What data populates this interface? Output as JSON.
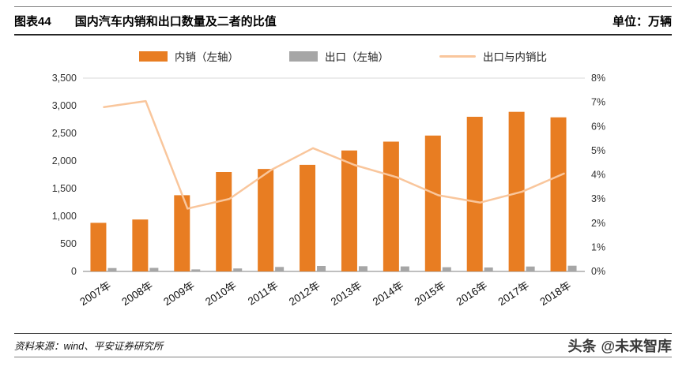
{
  "header": {
    "figure_number": "图表44",
    "title": "国内汽车内销和出口数量及二者的比值",
    "unit": "单位：万辆"
  },
  "footer": {
    "source": "资料来源：wind、平安证券研究所",
    "brand_name": "头条",
    "brand_handle": "@未来智库"
  },
  "colors": {
    "domestic_bar": "#E87D22",
    "export_bar": "#A6A6A6",
    "ratio_line": "#F9C69C",
    "axis_text": "#333333",
    "axis_line": "#7f7f7f",
    "plot_top_border": "#d9d9d9",
    "rule_dark": "#262626",
    "rule_light": "#808080"
  },
  "chart_data": {
    "type": "bar+line",
    "title": "国内汽车内销和出口数量及二者的比值",
    "unit": "万辆",
    "grid": false,
    "legend_position": "top",
    "categories": [
      "2007年",
      "2008年",
      "2009年",
      "2010年",
      "2011年",
      "2012年",
      "2013年",
      "2014年",
      "2015年",
      "2016年",
      "2017年",
      "2018年"
    ],
    "series": [
      {
        "name": "内销（左轴）",
        "type": "bar",
        "axis": "left",
        "color": "#E87D22",
        "values": [
          880,
          940,
          1380,
          1800,
          1855,
          1930,
          2190,
          2350,
          2460,
          2800,
          2890,
          2790
        ]
      },
      {
        "name": "出口（左轴）",
        "type": "bar",
        "axis": "left",
        "color": "#A6A6A6",
        "values": [
          61,
          64,
          37,
          54,
          81,
          100,
          95,
          91,
          76,
          71,
          89,
          104
        ]
      },
      {
        "name": "出口与内销比",
        "type": "line",
        "axis": "right",
        "color": "#F9C69C",
        "values": [
          6.8,
          7.05,
          2.6,
          3.0,
          4.2,
          5.1,
          4.4,
          3.9,
          3.15,
          2.85,
          3.3,
          4.05
        ]
      }
    ],
    "left_axis": {
      "max": 3500,
      "min": 0,
      "ticks": [
        {
          "value": 3500,
          "label": "3,500"
        },
        {
          "value": 3000,
          "label": "3,000"
        },
        {
          "value": 2500,
          "label": "2,500"
        },
        {
          "value": 2000,
          "label": "2,000"
        },
        {
          "value": 1500,
          "label": "1,500"
        },
        {
          "value": 1000,
          "label": "1,000"
        },
        {
          "value": 500,
          "label": "500"
        },
        {
          "value": 0,
          "label": "0"
        }
      ]
    },
    "right_axis": {
      "max": 8,
      "min": 0,
      "ticks": [
        {
          "value": 8,
          "label": "8%"
        },
        {
          "value": 7,
          "label": "7%"
        },
        {
          "value": 6,
          "label": "6%"
        },
        {
          "value": 5,
          "label": "5%"
        },
        {
          "value": 4,
          "label": "4%"
        },
        {
          "value": 3,
          "label": "3%"
        },
        {
          "value": 2,
          "label": "2%"
        },
        {
          "value": 1,
          "label": "1%"
        },
        {
          "value": 0,
          "label": "0%"
        }
      ]
    }
  }
}
